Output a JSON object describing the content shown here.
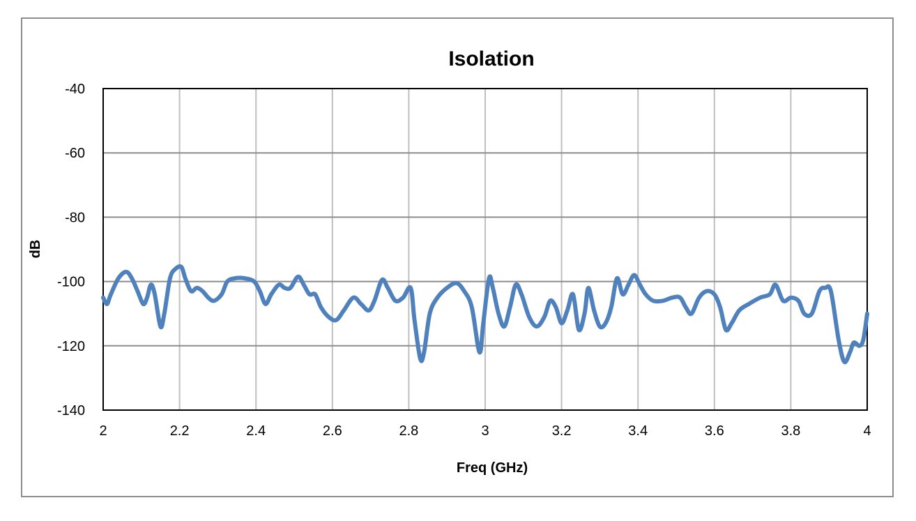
{
  "chart_data": {
    "type": "line",
    "title": "Isolation",
    "xlabel": "Freq (GHz)",
    "ylabel": "dB",
    "xlim": [
      2,
      4
    ],
    "ylim": [
      -140,
      -40
    ],
    "grid": true,
    "legend": "none",
    "x_ticks": [
      "2",
      "2.2",
      "2.4",
      "2.6",
      "2.8",
      "3",
      "3.2",
      "3.4",
      "3.6",
      "3.8",
      "4"
    ],
    "y_ticks": [
      "-40",
      "-60",
      "-80",
      "-100",
      "-120",
      "-140"
    ],
    "series": [
      {
        "name": "Isolation",
        "color": "#4f81bd",
        "x": [
          2.0,
          2.01,
          2.02,
          2.04,
          2.06,
          2.075,
          2.09,
          2.105,
          2.115,
          2.125,
          2.135,
          2.15,
          2.16,
          2.175,
          2.19,
          2.205,
          2.215,
          2.23,
          2.245,
          2.26,
          2.275,
          2.29,
          2.31,
          2.325,
          2.345,
          2.37,
          2.395,
          2.41,
          2.425,
          2.44,
          2.46,
          2.475,
          2.49,
          2.51,
          2.525,
          2.54,
          2.555,
          2.57,
          2.59,
          2.61,
          2.63,
          2.655,
          2.675,
          2.695,
          2.71,
          2.73,
          2.745,
          2.765,
          2.785,
          2.805,
          2.815,
          2.83,
          2.84,
          2.855,
          2.875,
          2.9,
          2.925,
          2.945,
          2.965,
          2.985,
          2.995,
          3.01,
          3.02,
          3.035,
          3.05,
          3.065,
          3.08,
          3.095,
          3.115,
          3.135,
          3.155,
          3.17,
          3.185,
          3.2,
          3.215,
          3.23,
          3.245,
          3.26,
          3.27,
          3.285,
          3.3,
          3.315,
          3.33,
          3.345,
          3.36,
          3.375,
          3.39,
          3.405,
          3.42,
          3.44,
          3.465,
          3.49,
          3.51,
          3.525,
          3.54,
          3.56,
          3.58,
          3.6,
          3.615,
          3.63,
          3.645,
          3.665,
          3.69,
          3.72,
          3.745,
          3.76,
          3.78,
          3.8,
          3.82,
          3.835,
          3.855,
          3.875,
          3.89,
          3.905,
          3.925,
          3.94,
          3.955,
          3.965,
          3.98,
          3.99,
          4.0
        ],
        "y": [
          -105,
          -107,
          -104,
          -99,
          -97,
          -99,
          -103,
          -107,
          -105,
          -101,
          -104,
          -114,
          -110,
          -99,
          -96,
          -95.5,
          -99,
          -103,
          -102,
          -103,
          -105,
          -106,
          -104,
          -100,
          -99,
          -99,
          -100,
          -103,
          -107,
          -104,
          -101,
          -102,
          -102,
          -98.5,
          -101,
          -104,
          -104,
          -108,
          -111,
          -112,
          -109,
          -105,
          -107,
          -109,
          -106,
          -99.5,
          -102,
          -106,
          -105,
          -102,
          -112,
          -124,
          -122,
          -110,
          -105,
          -102,
          -100.5,
          -103,
          -108,
          -122,
          -113,
          -99,
          -102,
          -110,
          -114,
          -108,
          -101,
          -104,
          -111,
          -114,
          -111,
          -106,
          -108,
          -113,
          -109,
          -104,
          -115,
          -110,
          -102,
          -109,
          -114,
          -113,
          -108,
          -99,
          -104,
          -101,
          -98,
          -101,
          -104,
          -106,
          -106,
          -105,
          -105,
          -108,
          -110,
          -105,
          -103,
          -104,
          -108,
          -115,
          -113,
          -109,
          -107,
          -105,
          -104,
          -101,
          -106,
          -105,
          -106,
          -110,
          -110,
          -103,
          -102,
          -103,
          -118,
          -125,
          -122,
          -119,
          -120,
          -118,
          -110
        ]
      }
    ]
  }
}
